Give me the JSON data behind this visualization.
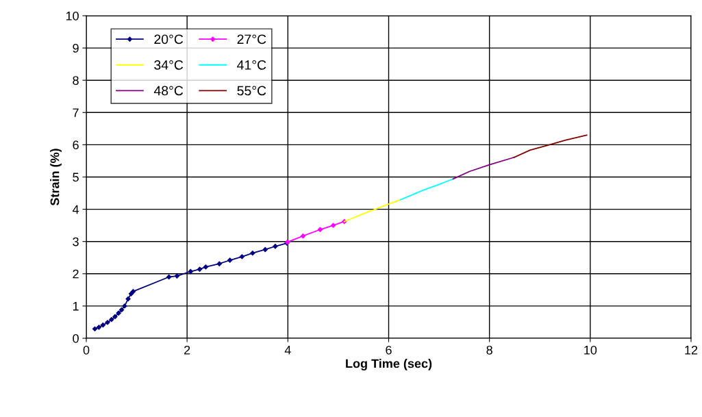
{
  "chart_data": {
    "type": "line",
    "xlabel": "Log Time (sec)",
    "ylabel": "Strain (%)",
    "xlim": [
      0,
      12
    ],
    "xticks": [
      0,
      2,
      4,
      6,
      8,
      10,
      12
    ],
    "ylim": [
      0,
      10
    ],
    "yticks": [
      0,
      1,
      2,
      3,
      4,
      5,
      6,
      7,
      8,
      9,
      10
    ],
    "grid": true,
    "legend": "top left",
    "series": [
      {
        "name": "20°C",
        "color": "#000080",
        "marker": "diamond",
        "x": [
          0.17,
          0.25,
          0.33,
          0.42,
          0.5,
          0.57,
          0.64,
          0.7,
          0.76,
          0.83,
          0.89,
          0.93,
          1.64,
          1.8,
          2.07,
          2.25,
          2.37,
          2.64,
          2.85,
          3.09,
          3.3,
          3.55,
          3.75,
          3.98
        ],
        "values": [
          0.29,
          0.34,
          0.41,
          0.49,
          0.58,
          0.67,
          0.78,
          0.88,
          1.0,
          1.22,
          1.38,
          1.45,
          1.9,
          1.93,
          2.07,
          2.14,
          2.21,
          2.31,
          2.42,
          2.53,
          2.64,
          2.75,
          2.85,
          2.95
        ]
      },
      {
        "name": "27°C",
        "color": "#ff00ff",
        "marker": "diamond",
        "x": [
          3.99,
          4.3,
          4.64,
          4.9,
          5.12
        ],
        "values": [
          2.98,
          3.17,
          3.37,
          3.5,
          3.62
        ]
      },
      {
        "name": "34°C",
        "color": "#ffff00",
        "marker": "none",
        "x": [
          5.12,
          5.5,
          5.9,
          6.24
        ],
        "values": [
          3.62,
          3.86,
          4.1,
          4.3
        ]
      },
      {
        "name": "41°C",
        "color": "#00ffff",
        "marker": "none",
        "x": [
          6.24,
          6.68,
          7.0,
          7.28
        ],
        "values": [
          4.3,
          4.59,
          4.77,
          4.94
        ]
      },
      {
        "name": "48°C",
        "color": "#800080",
        "marker": "none",
        "x": [
          7.28,
          7.6,
          8.0,
          8.49
        ],
        "values": [
          4.94,
          5.17,
          5.38,
          5.61
        ]
      },
      {
        "name": "55°C",
        "color": "#800000",
        "marker": "none",
        "x": [
          8.49,
          8.8,
          9.17,
          9.5,
          9.93
        ],
        "values": [
          5.61,
          5.83,
          5.99,
          6.14,
          6.3
        ]
      }
    ]
  }
}
